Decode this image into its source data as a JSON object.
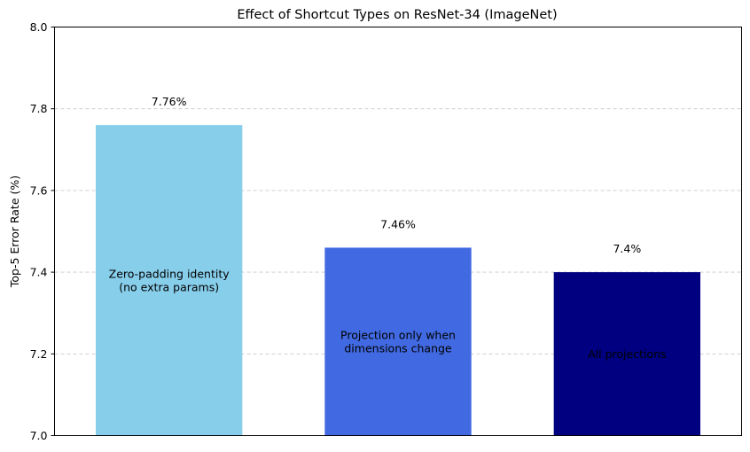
{
  "chart_data": {
    "type": "bar",
    "title": "Effect of Shortcut Types on ResNet-34 (ImageNet)",
    "xlabel": "",
    "ylabel": "Top-5 Error Rate (%)",
    "ylim": [
      7.0,
      8.0
    ],
    "yticks": [
      7.0,
      7.2,
      7.4,
      7.6,
      7.8,
      8.0
    ],
    "ytick_labels": [
      "7.0",
      "7.2",
      "7.4",
      "7.6",
      "7.8",
      "8.0"
    ],
    "grid": "y-dashed",
    "categories": [
      "Zero-padding identity\n(no extra params)",
      "Projection only when\ndimensions change",
      "All projections"
    ],
    "values": [
      7.76,
      7.46,
      7.4
    ],
    "value_labels": [
      "7.76%",
      "7.46%",
      "7.4%"
    ],
    "colors": [
      "#87ceeb",
      "#4169e1",
      "#000080"
    ]
  }
}
